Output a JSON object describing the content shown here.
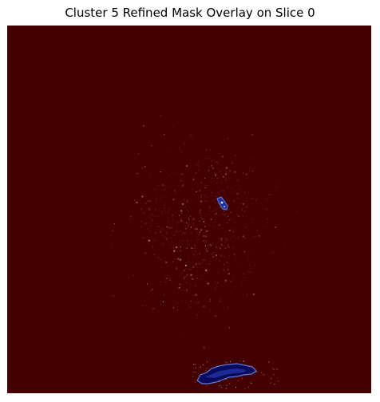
{
  "figure": {
    "title": "Cluster 5 Refined Mask Overlay on Slice 0"
  },
  "image": {
    "description_colors": {
      "background": "#440000",
      "speckle": "#c26b5b",
      "speckle_bright": "#f0c0a8",
      "mask_dark": "#0a0a5c",
      "mask_mid": "#1e2d9a",
      "mask_edge": "#5b7bd8"
    }
  }
}
